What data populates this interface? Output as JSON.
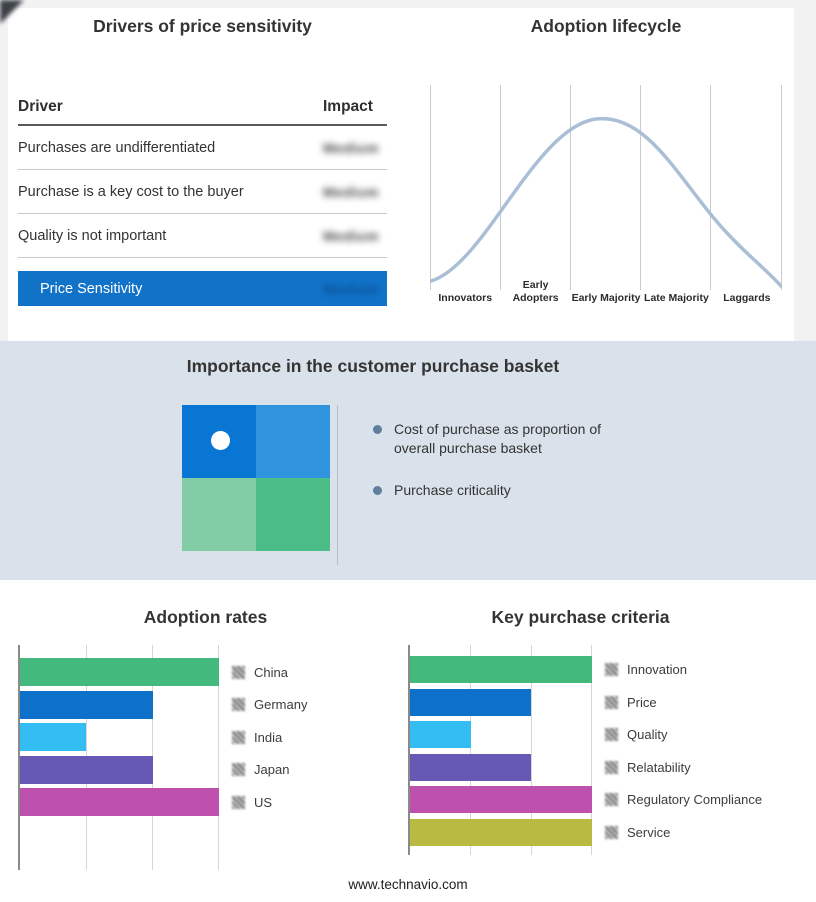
{
  "page": {
    "footer_link": "www.technavio.com",
    "band_color": "#d9e2ea",
    "background_color": "#f2f2f2"
  },
  "drivers_panel": {
    "title": "Drivers of price sensitivity",
    "columns": {
      "driver": "Driver",
      "impact": "Impact"
    },
    "rows": [
      {
        "driver": "Purchases are undifferentiated",
        "impact": "Medium"
      },
      {
        "driver": "Purchase is a key cost to the buyer",
        "impact": "Medium"
      },
      {
        "driver": "Quality is not important",
        "impact": "Medium"
      }
    ],
    "highlight": {
      "driver": "Price Sensitivity",
      "impact": "Medium",
      "background": "#1173c8"
    }
  },
  "basket_panel": {
    "title": "Importance in the customer purchase basket",
    "bullets": [
      "Cost of purchase as proportion of overall purchase basket",
      "Purchase criticality"
    ],
    "bullet_color": "#5f7d9c",
    "matrix_colors": [
      "#0a76d4",
      "#2f93dd",
      "#83cda6",
      "#4cbd86"
    ]
  },
  "chart_data": [
    {
      "type": "line",
      "title": "Adoption lifecycle",
      "categories": [
        "Innovators",
        "Early Adopters",
        "Early Majority",
        "Late Majority",
        "Laggards"
      ],
      "x_normalized": [
        0,
        0.2,
        0.47,
        0.75,
        1
      ],
      "values": [
        0.05,
        0.45,
        1.0,
        0.62,
        0.03
      ],
      "ylim": [
        0,
        1
      ],
      "color": "#aabfd6",
      "grid": true,
      "description": "Bell-shaped adoption curve peaking at Early Majority"
    },
    {
      "type": "bar",
      "title": "Adoption rates",
      "orientation": "horizontal",
      "categories": [
        "China",
        "Germany",
        "India",
        "Japan",
        "US"
      ],
      "values": [
        3,
        2,
        1,
        2,
        3
      ],
      "xlim": [
        0,
        3
      ],
      "max": 3,
      "colors": [
        "#44b97d",
        "#0d71c9",
        "#33bdf2",
        "#6659b6",
        "#bf51ae"
      ],
      "grid": true,
      "legend_position": "right"
    },
    {
      "type": "bar",
      "title": "Key purchase criteria",
      "orientation": "horizontal",
      "categories": [
        "Innovation",
        "Price",
        "Quality",
        "Relatability",
        "Regulatory Compliance",
        "Service"
      ],
      "values": [
        3,
        2,
        1,
        2,
        3,
        3
      ],
      "xlim": [
        0,
        3
      ],
      "max": 3,
      "colors": [
        "#44b97d",
        "#0d71c9",
        "#33bdf2",
        "#6659b6",
        "#bf51ae",
        "#b9ba41"
      ],
      "grid": true,
      "legend_position": "right"
    }
  ]
}
